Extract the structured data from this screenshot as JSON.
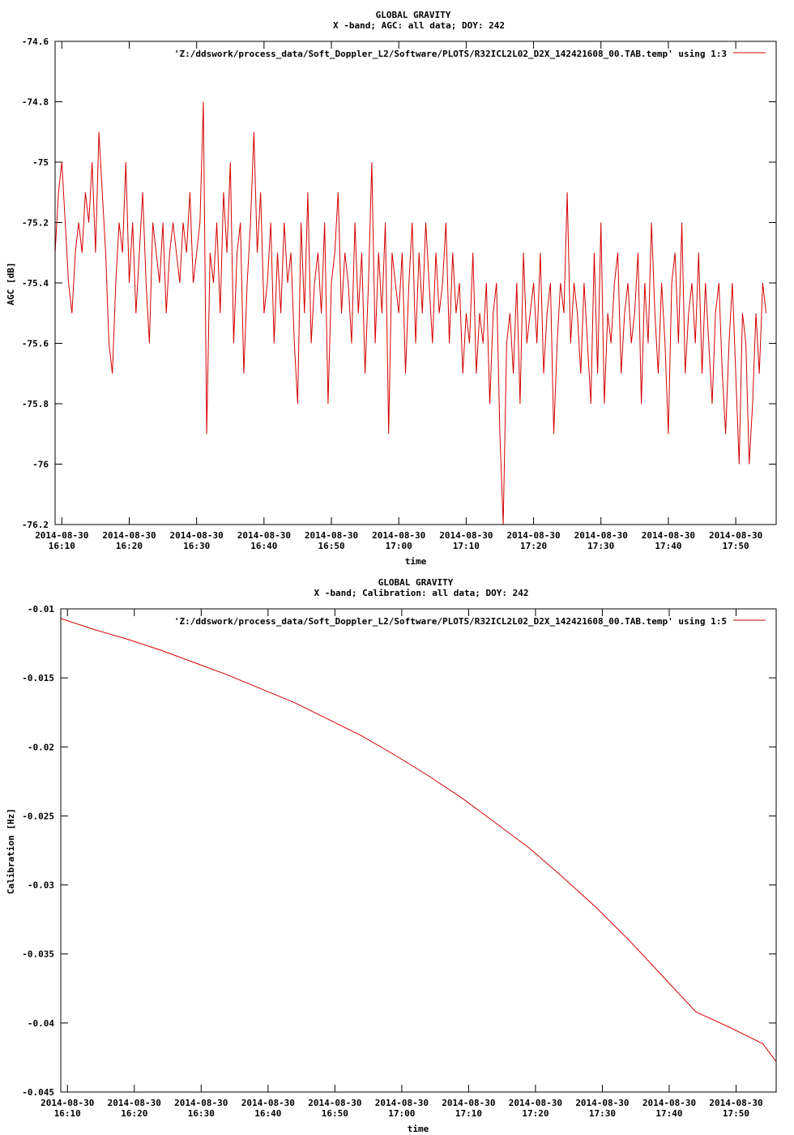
{
  "chart_data": [
    {
      "type": "line",
      "title": "GLOBAL GRAVITY",
      "subtitle": "X -band; AGC: all data; DOY: 242",
      "xlabel": "time",
      "ylabel": "AGC [dB]",
      "xlim": [
        "2014-08-30 16:09:00",
        "2014-08-30 17:56:00"
      ],
      "ylim": [
        -76.2,
        -74.6
      ],
      "yticks": [
        -74.6,
        -74.8,
        -75,
        -75.2,
        -75.4,
        -75.6,
        -75.8,
        -76,
        -76.2
      ],
      "ytick_labels": [
        "-74.6",
        "-74.8",
        "-75",
        "-75.2",
        "-75.4",
        "-75.6",
        "-75.8",
        "-76",
        "-76.2"
      ],
      "xticks": [
        "16:10",
        "16:20",
        "16:30",
        "16:40",
        "16:50",
        "17:00",
        "17:10",
        "17:20",
        "17:30",
        "17:40",
        "17:50"
      ],
      "xtick_date": "2014-08-30",
      "grid": false,
      "legend_position": "top-right",
      "series": [
        {
          "name": "'Z:/ddswork/process_data/Soft_Doppler_L2/Software/PLOTS/R32ICL2L02_D2X_142421608_00.TAB.temp' using 1:3",
          "color": "#d40000",
          "sample_minutes": [
            0,
            0.5,
            1,
            1.5,
            2,
            2.5,
            3,
            3.5,
            4,
            4.5,
            5,
            5.5,
            6,
            6.5,
            7,
            7.5,
            8,
            8.5,
            9,
            9.5,
            10,
            10.5,
            11,
            11.5,
            12,
            12.5,
            13,
            13.5,
            14,
            14.5,
            15,
            15.5,
            16,
            16.5,
            17,
            17.5,
            18,
            18.5,
            19,
            19.5,
            20,
            20.5,
            21,
            21.5,
            22,
            22.5,
            23,
            23.5,
            24,
            24.5,
            25,
            25.5,
            26,
            26.5,
            27,
            27.5,
            28,
            28.5,
            29,
            29.5,
            30,
            30.5,
            31,
            31.5,
            32,
            32.5,
            33,
            33.5,
            34,
            34.5,
            35,
            35.5,
            36,
            36.5,
            37,
            37.5,
            38,
            38.5,
            39,
            39.5,
            40,
            40.5,
            41,
            41.5,
            42,
            42.5,
            43,
            43.5,
            44,
            44.5,
            45,
            45.5,
            46,
            46.5,
            47,
            47.5,
            48,
            48.5,
            49,
            49.5,
            50,
            50.5,
            51,
            51.5,
            52,
            52.5,
            53,
            53.5,
            54,
            54.5,
            55,
            55.5,
            56,
            56.5,
            57,
            57.5,
            58,
            58.5,
            59,
            59.5,
            60,
            60.5,
            61,
            61.5,
            62,
            62.5,
            63,
            63.5,
            64,
            64.5,
            65,
            65.5,
            66,
            66.5,
            67,
            67.5,
            68,
            68.5,
            69,
            69.5,
            70,
            70.5,
            71,
            71.5,
            72,
            72.5,
            73,
            73.5,
            74,
            74.5,
            75,
            75.5,
            76,
            76.5,
            77,
            77.5,
            78,
            78.5,
            79,
            79.5,
            80,
            80.5,
            81,
            81.5,
            82,
            82.5,
            83,
            83.5,
            84,
            84.5,
            85,
            85.5,
            86,
            86.5,
            87,
            87.5,
            88,
            88.5,
            89,
            89.5,
            90,
            90.5,
            91,
            91.5,
            92,
            92.5,
            93,
            93.5,
            94,
            94.5,
            95,
            95.5,
            96,
            96.5,
            97,
            97.5,
            98,
            98.5,
            99,
            99.5,
            100,
            100.5,
            101,
            101.5,
            102,
            102.5,
            103,
            103.5,
            104,
            104.5,
            105,
            105.5,
            106,
            106.5,
            107
          ],
          "values": [
            -75.3,
            -75.1,
            -75.0,
            -75.2,
            -75.4,
            -75.5,
            -75.3,
            -75.2,
            -75.3,
            -75.1,
            -75.2,
            -75.0,
            -75.3,
            -74.9,
            -75.1,
            -75.3,
            -75.6,
            -75.7,
            -75.4,
            -75.2,
            -75.3,
            -75.0,
            -75.4,
            -75.2,
            -75.5,
            -75.3,
            -75.1,
            -75.4,
            -75.6,
            -75.2,
            -75.3,
            -75.4,
            -75.2,
            -75.5,
            -75.3,
            -75.2,
            -75.3,
            -75.4,
            -75.2,
            -75.3,
            -75.1,
            -75.4,
            -75.3,
            -75.2,
            -74.8,
            -75.9,
            -75.3,
            -75.4,
            -75.2,
            -75.5,
            -75.1,
            -75.3,
            -75.0,
            -75.6,
            -75.3,
            -75.2,
            -75.7,
            -75.4,
            -75.2,
            -74.9,
            -75.3,
            -75.1,
            -75.5,
            -75.4,
            -75.2,
            -75.6,
            -75.3,
            -75.5,
            -75.2,
            -75.4,
            -75.3,
            -75.6,
            -75.8,
            -75.2,
            -75.5,
            -75.1,
            -75.6,
            -75.4,
            -75.3,
            -75.5,
            -75.2,
            -75.8,
            -75.4,
            -75.3,
            -75.1,
            -75.5,
            -75.3,
            -75.4,
            -75.6,
            -75.2,
            -75.5,
            -75.3,
            -75.7,
            -75.4,
            -75.0,
            -75.6,
            -75.3,
            -75.5,
            -75.2,
            -75.9,
            -75.3,
            -75.4,
            -75.5,
            -75.3,
            -75.7,
            -75.4,
            -75.2,
            -75.6,
            -75.3,
            -75.5,
            -75.2,
            -75.4,
            -75.6,
            -75.3,
            -75.5,
            -75.4,
            -75.2,
            -75.6,
            -75.3,
            -75.5,
            -75.4,
            -75.7,
            -75.5,
            -75.6,
            -75.3,
            -75.7,
            -75.5,
            -75.6,
            -75.4,
            -75.8,
            -75.5,
            -75.4,
            -75.9,
            -76.2,
            -75.6,
            -75.5,
            -75.7,
            -75.4,
            -75.8,
            -75.3,
            -75.6,
            -75.5,
            -75.4,
            -75.6,
            -75.3,
            -75.7,
            -75.5,
            -75.4,
            -75.9,
            -75.6,
            -75.4,
            -75.5,
            -75.1,
            -75.6,
            -75.4,
            -75.5,
            -75.7,
            -75.4,
            -75.6,
            -75.8,
            -75.3,
            -75.7,
            -75.2,
            -75.8,
            -75.5,
            -75.6,
            -75.4,
            -75.3,
            -75.7,
            -75.5,
            -75.4,
            -75.6,
            -75.5,
            -75.3,
            -75.8,
            -75.4,
            -75.6,
            -75.2,
            -75.5,
            -75.7,
            -75.4,
            -75.6,
            -75.9,
            -75.4,
            -75.3,
            -75.6,
            -75.2,
            -75.7,
            -75.5,
            -75.4,
            -75.6,
            -75.3,
            -75.7,
            -75.4,
            -75.6,
            -75.8,
            -75.5,
            -75.4,
            -75.7,
            -75.9,
            -75.6,
            -75.4,
            -75.7,
            -76.0,
            -75.5,
            -75.6,
            -76.0,
            -75.8,
            -75.5,
            -75.7,
            -75.4,
            -75.5
          ]
        }
      ]
    },
    {
      "type": "line",
      "title": "GLOBAL GRAVITY",
      "subtitle": "X -band; Calibration: all data; DOY: 242",
      "xlabel": "time",
      "ylabel": "Calibration [Hz]",
      "xlim": [
        "2014-08-30 16:09:00",
        "2014-08-30 17:56:00"
      ],
      "ylim": [
        -0.045,
        -0.01
      ],
      "yticks": [
        -0.01,
        -0.015,
        -0.02,
        -0.025,
        -0.03,
        -0.035,
        -0.04,
        -0.045
      ],
      "ytick_labels": [
        "-0.01",
        "-0.015",
        "-0.02",
        "-0.025",
        "-0.03",
        "-0.035",
        "-0.04",
        "-0.045"
      ],
      "xticks": [
        "16:10",
        "16:20",
        "16:30",
        "16:40",
        "16:50",
        "17:00",
        "17:10",
        "17:20",
        "17:30",
        "17:40",
        "17:50"
      ],
      "xtick_date": "2014-08-30",
      "grid": false,
      "legend_position": "top-right",
      "series": [
        {
          "name": "'Z:/ddswork/process_data/Soft_Doppler_L2/Software/PLOTS/R32ICL2L02_D2X_142421608_00.TAB.temp' using 1:5",
          "color": "#d40000",
          "sample_minutes": [
            0,
            5,
            10,
            15,
            20,
            25,
            30,
            35,
            40,
            45,
            50,
            55,
            60,
            65,
            70,
            75,
            80,
            85,
            90,
            95,
            100,
            105,
            107
          ],
          "values": [
            -0.0107,
            -0.0115,
            -0.0122,
            -0.013,
            -0.0139,
            -0.0148,
            -0.0158,
            -0.0168,
            -0.018,
            -0.0192,
            -0.0206,
            -0.0221,
            -0.0237,
            -0.0255,
            -0.0273,
            -0.0294,
            -0.0316,
            -0.034,
            -0.0366,
            -0.0392,
            -0.0403,
            -0.0415,
            -0.0428
          ]
        }
      ]
    }
  ]
}
